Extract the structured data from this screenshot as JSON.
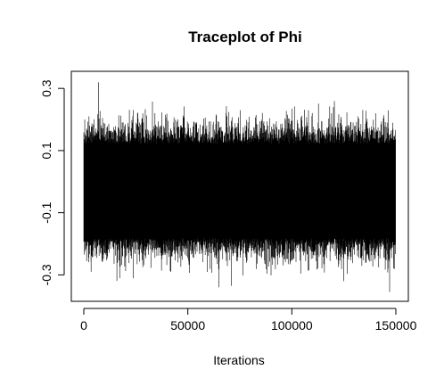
{
  "chart_data": {
    "type": "line",
    "title": "Traceplot of Phi",
    "xlabel": "Iterations",
    "ylabel": "",
    "xlim": [
      -6000,
      156000
    ],
    "ylim": [
      -0.385,
      0.355
    ],
    "x_ticks": [
      0,
      50000,
      100000,
      150000
    ],
    "x_tick_labels": [
      "0",
      "50000",
      "100000",
      "150000"
    ],
    "y_ticks": [
      -0.3,
      -0.1,
      0.1,
      0.3
    ],
    "y_tick_labels": [
      "-0.3",
      "-0.1",
      "0.1",
      "0.3"
    ],
    "grid": false,
    "series": [
      {
        "color": "#000000",
        "x_range": [
          0,
          150000
        ],
        "typical_band": [
          -0.22,
          0.16
        ],
        "approx_min": -0.36,
        "approx_max": 0.32,
        "extremes": [
          {
            "x": 7000,
            "y": 0.32
          },
          {
            "x": 2500,
            "y": 0.21
          },
          {
            "x": 100000,
            "y": 0.235
          },
          {
            "x": 108000,
            "y": 0.23
          },
          {
            "x": 120000,
            "y": 0.24
          },
          {
            "x": 65000,
            "y": -0.34
          },
          {
            "x": 71000,
            "y": -0.335
          },
          {
            "x": 147000,
            "y": -0.355
          },
          {
            "x": 3500,
            "y": -0.29
          },
          {
            "x": 125000,
            "y": -0.32
          }
        ]
      }
    ]
  }
}
